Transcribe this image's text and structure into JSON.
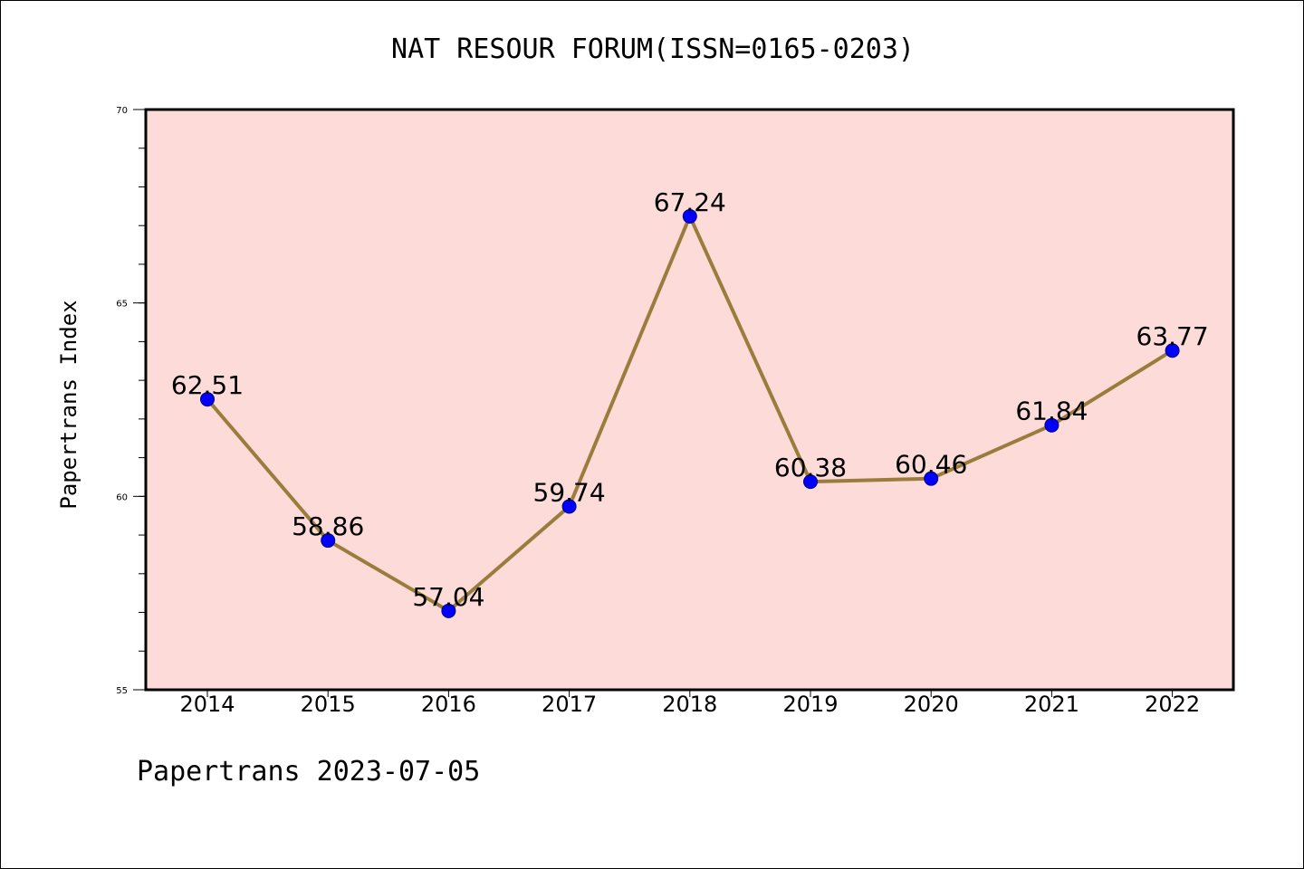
{
  "chart_data": {
    "type": "line",
    "title": "NAT RESOUR FORUM(ISSN=0165-0203)",
    "xlabel": "",
    "ylabel": "Papertrans Index",
    "categories": [
      "2014",
      "2015",
      "2016",
      "2017",
      "2018",
      "2019",
      "2020",
      "2021",
      "2022"
    ],
    "series": [
      {
        "values": [
          62.51,
          58.86,
          57.04,
          59.74,
          67.24,
          60.38,
          60.46,
          61.84,
          63.77
        ]
      }
    ],
    "data_labels": [
      "62.51",
      "58.86",
      "57.04",
      "59.74",
      "67.24",
      "60.38",
      "60.46",
      "61.84",
      "63.77"
    ],
    "ylim": [
      55,
      70
    ],
    "yticks": [
      55,
      60,
      65,
      70
    ],
    "ytick_labels": [
      "55",
      "60",
      "65",
      "70"
    ],
    "y_minor_step": 1,
    "grid": false,
    "legend": "none",
    "colors": {
      "plot_background": "#fddbd8",
      "line": "#9a7d3c",
      "marker": "#0000ff",
      "marker_edge": "#000080",
      "axis": "#000000"
    }
  },
  "footer": {
    "text": "Papertrans 2023-07-05"
  }
}
